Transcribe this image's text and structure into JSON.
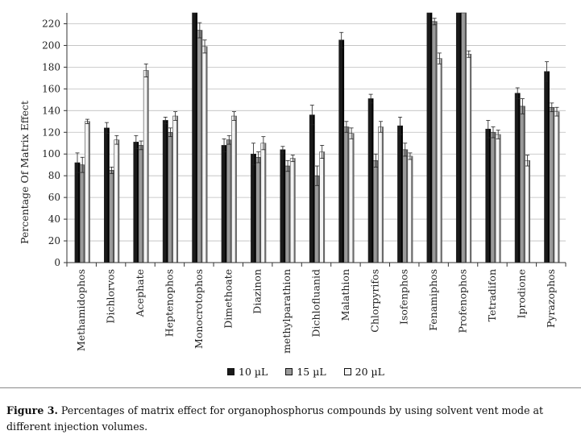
{
  "chart_data": {
    "type": "bar",
    "title": "",
    "xlabel": "",
    "ylabel": "Percentage Of Matrix Effect",
    "ylim": [
      0,
      230
    ],
    "yticks": [
      0,
      20,
      40,
      60,
      80,
      100,
      120,
      140,
      160,
      180,
      200,
      220
    ],
    "grid": true,
    "legend_position": "bottom",
    "categories": [
      "Methamidophos",
      "Dichlorvos",
      "Acephate",
      "Heptenophos",
      "Monocrotophos",
      "Dimethoate",
      "Diazinon",
      "methylparathion",
      "Dichlofluanid",
      "Malathion",
      "Chlorpyrifos",
      "Isofenphos",
      "Fenamiphos",
      "Profenophos",
      "Tetradifon",
      "Iprodione",
      "Pyrazophos"
    ],
    "series": [
      {
        "name": "10 µL",
        "color": "#1a1a1a",
        "values": [
          92,
          124,
          111,
          131,
          230,
          108,
          100,
          104,
          136,
          205,
          151,
          126,
          230,
          230,
          123,
          156,
          176
        ],
        "errors": [
          9,
          5,
          6,
          3,
          0,
          6,
          10,
          3,
          9,
          7,
          4,
          8,
          0,
          0,
          8,
          5,
          9
        ]
      },
      {
        "name": "15 µL",
        "color": "#9a9a9a",
        "values": [
          90,
          85,
          108,
          120,
          214,
          113,
          97,
          89,
          80,
          125,
          94,
          104,
          222,
          230,
          120,
          144,
          143
        ],
        "errors": [
          7,
          3,
          4,
          4,
          7,
          4,
          5,
          5,
          9,
          5,
          6,
          6,
          3,
          0,
          5,
          7,
          4
        ]
      },
      {
        "name": "20 µL",
        "color": "#f4f4f4",
        "values": [
          130,
          113,
          177,
          135,
          199,
          135,
          110,
          96,
          102,
          119,
          125,
          98,
          188,
          192,
          118,
          94,
          139
        ],
        "errors": [
          2,
          4,
          6,
          4,
          6,
          4,
          6,
          3,
          6,
          5,
          5,
          3,
          5,
          3,
          4,
          5,
          4
        ]
      }
    ]
  },
  "legend": {
    "items": [
      {
        "label": "10 µL",
        "color": "#1a1a1a"
      },
      {
        "label": "15 µL",
        "color": "#9a9a9a"
      },
      {
        "label": "20 µL",
        "color": "#f4f4f4"
      }
    ]
  },
  "caption": {
    "figure_label": "Figure 3.",
    "text": "Percentages of matrix effect for organophosphorus compounds by using solvent vent mode at different injection volumes."
  }
}
